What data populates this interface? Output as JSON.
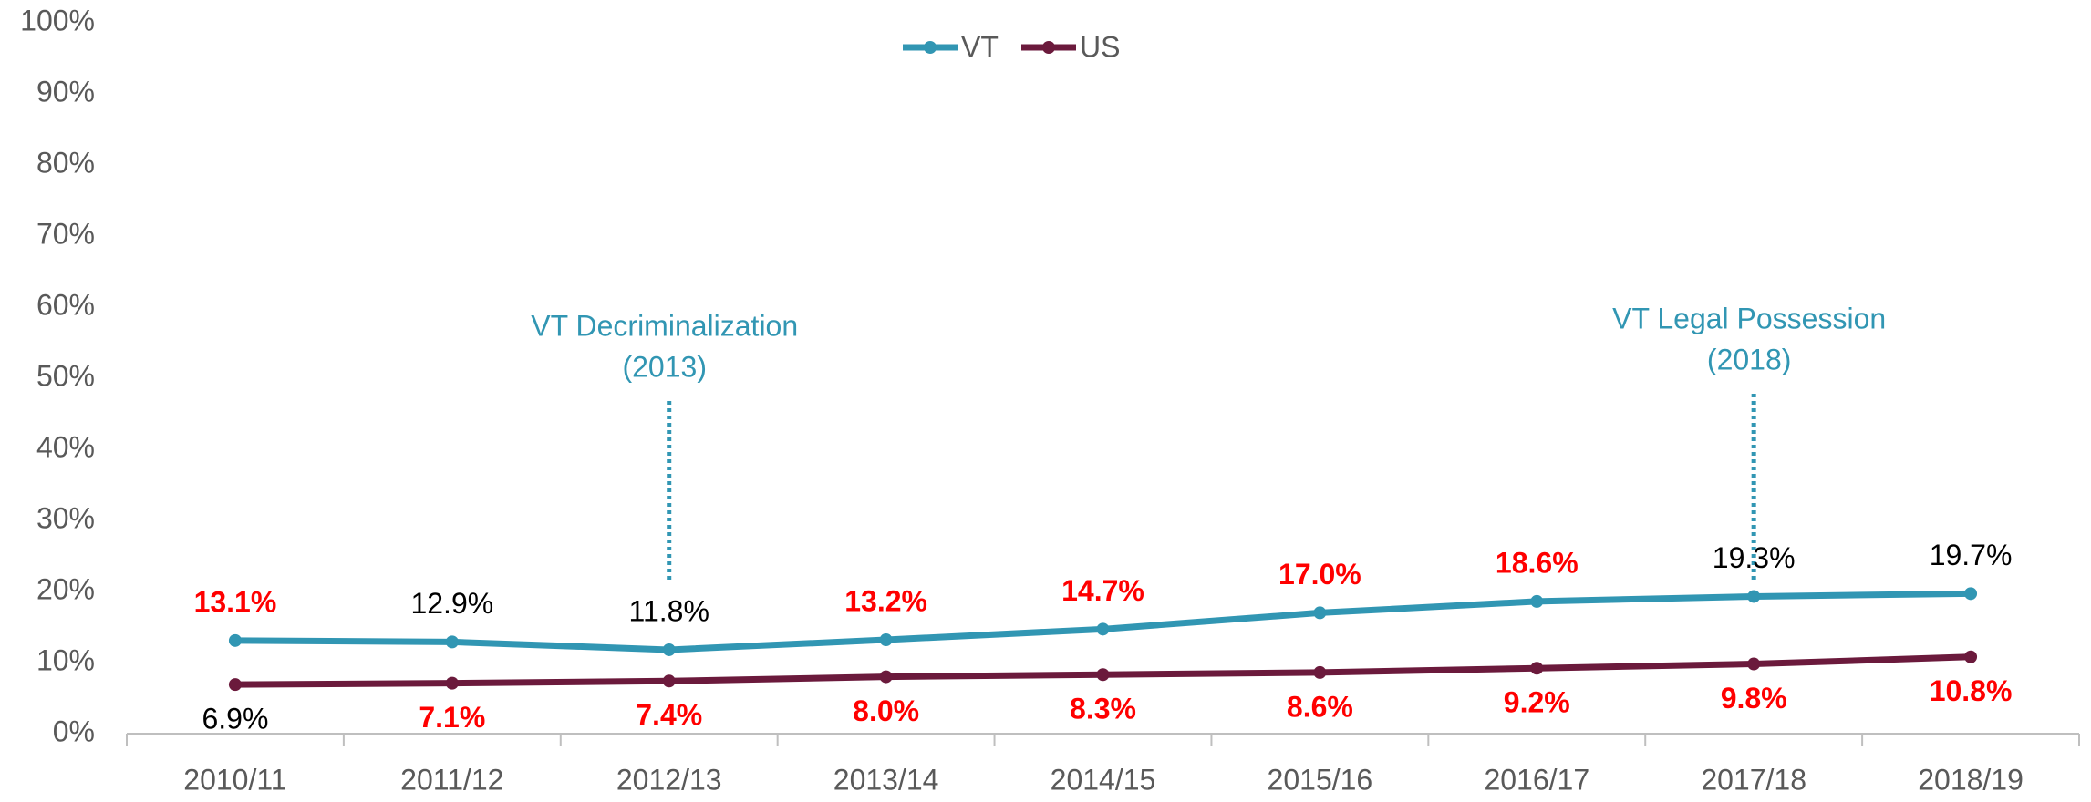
{
  "chart_data": {
    "type": "line",
    "categories": [
      "2010/11",
      "2011/12",
      "2012/13",
      "2013/14",
      "2014/15",
      "2015/16",
      "2016/17",
      "2017/18",
      "2018/19"
    ],
    "series": [
      {
        "name": "VT",
        "color": "#3196b3",
        "values": [
          13.1,
          12.9,
          11.8,
          13.2,
          14.7,
          17.0,
          18.6,
          19.3,
          19.7
        ],
        "value_labels": [
          "13.1%",
          "12.9%",
          "11.8%",
          "13.2%",
          "14.7%",
          "17.0%",
          "18.6%",
          "19.3%",
          "19.7%"
        ],
        "label_colors": [
          "#ff0000",
          "#000000",
          "#000000",
          "#ff0000",
          "#ff0000",
          "#ff0000",
          "#ff0000",
          "#000000",
          "#000000"
        ]
      },
      {
        "name": "US",
        "color": "#6b1a3c",
        "values": [
          6.9,
          7.1,
          7.4,
          8.0,
          8.3,
          8.6,
          9.2,
          9.8,
          10.8
        ],
        "value_labels": [
          "6.9%",
          "7.1%",
          "7.4%",
          "8.0%",
          "8.3%",
          "8.6%",
          "9.2%",
          "9.8%",
          "10.8%"
        ],
        "label_colors": [
          "#000000",
          "#ff0000",
          "#ff0000",
          "#ff0000",
          "#ff0000",
          "#ff0000",
          "#ff0000",
          "#ff0000",
          "#ff0000"
        ]
      }
    ],
    "ylim": [
      0,
      100
    ],
    "yticks": [
      {
        "value": 0,
        "label": "0%"
      },
      {
        "value": 10,
        "label": "10%"
      },
      {
        "value": 20,
        "label": "20%"
      },
      {
        "value": 30,
        "label": "30%"
      },
      {
        "value": 40,
        "label": "40%"
      },
      {
        "value": 50,
        "label": "50%"
      },
      {
        "value": 60,
        "label": "60%"
      },
      {
        "value": 70,
        "label": "70%"
      },
      {
        "value": 80,
        "label": "80%"
      },
      {
        "value": 90,
        "label": "90%"
      },
      {
        "value": 100,
        "label": "100%"
      }
    ],
    "annotations": [
      {
        "lines": [
          "VT Decriminalization",
          "(2013)"
        ],
        "color": "#3196b3"
      },
      {
        "lines": [
          "VT Legal Possession",
          "(2018)"
        ],
        "color": "#3196b3"
      }
    ],
    "legend": "top"
  }
}
